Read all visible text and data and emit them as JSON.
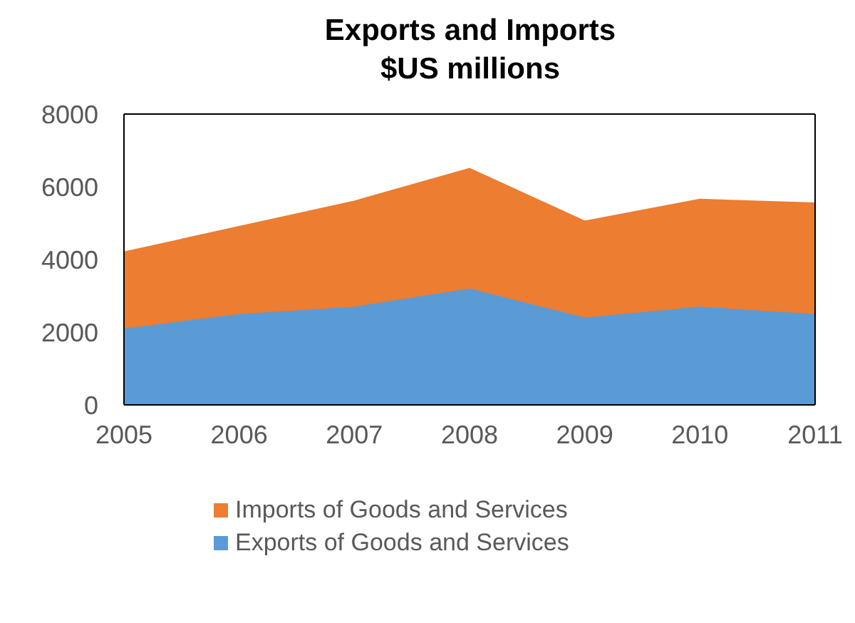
{
  "chart_data": {
    "type": "area",
    "stacked": true,
    "title": "Exports and Imports",
    "subtitle": "$US millions",
    "x": [
      2005,
      2006,
      2007,
      2008,
      2009,
      2010,
      2011
    ],
    "series": [
      {
        "name": "Exports of Goods and Services",
        "color": "#5b9bd5",
        "values": [
          2100,
          2500,
          2700,
          3200,
          2400,
          2700,
          2500
        ]
      },
      {
        "name": "Imports of Goods and Services",
        "color": "#ed7d31",
        "values": [
          2100,
          2400,
          2900,
          3300,
          2650,
          2950,
          3050
        ]
      }
    ],
    "xlim": [
      2005,
      2011
    ],
    "xticks": [
      2005,
      2006,
      2007,
      2008,
      2009,
      2010,
      2011
    ],
    "ylim": [
      0,
      8000
    ],
    "yticks": [
      0,
      2000,
      4000,
      6000,
      8000
    ],
    "legend": "bottom"
  }
}
